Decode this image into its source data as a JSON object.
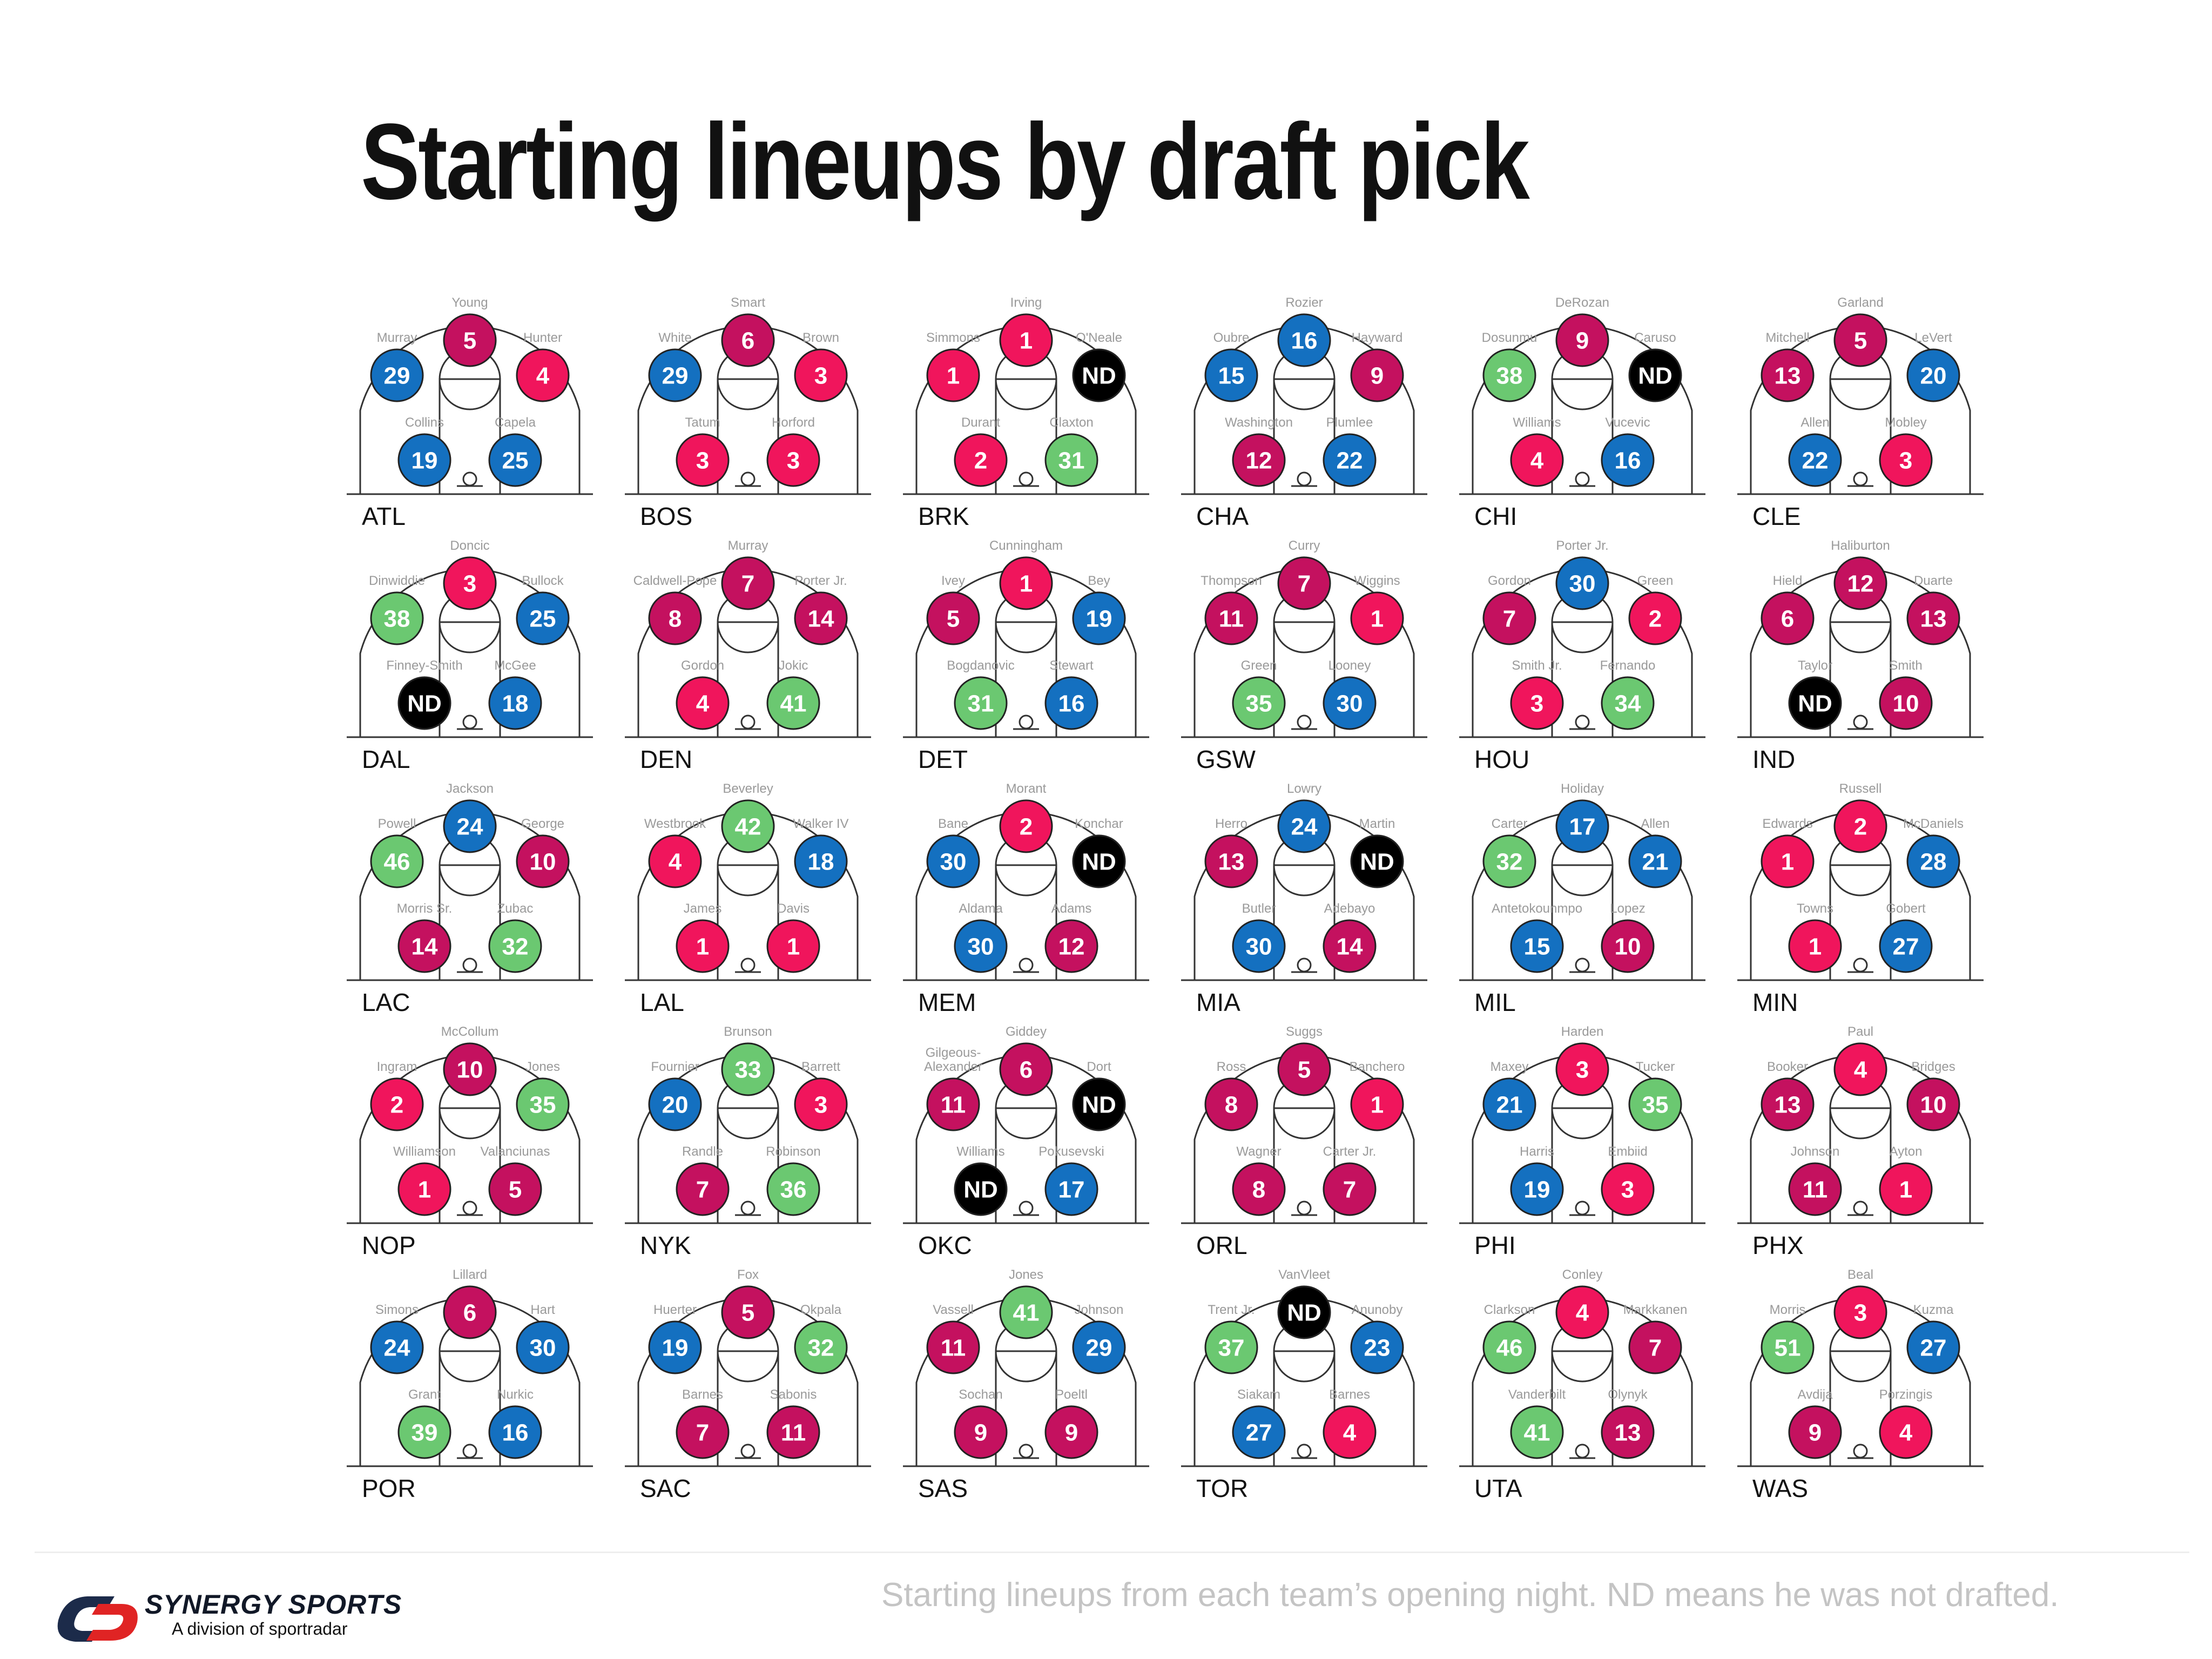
{
  "title": "Starting lineups by draft pick",
  "footnote": "Starting lineups from each team’s opening night. ND means he was not drafted.",
  "brand": {
    "name": "SYNERGY SPORTS",
    "division": "A division of sportradar"
  },
  "colors": {
    "top_pick": "#f0155c",
    "lottery": "#c4115f",
    "first_round": "#1470c0",
    "second_round": "#6bc871",
    "not_drafted": "#000000",
    "court_line": "#333333"
  },
  "chart_data": {
    "type": "table",
    "positions": [
      "left-wing",
      "top",
      "right-wing",
      "left-block",
      "right-block"
    ],
    "teams": [
      {
        "team": "ATL",
        "players": [
          {
            "name": "Murray",
            "pick": "29"
          },
          {
            "name": "Young",
            "pick": "5"
          },
          {
            "name": "Hunter",
            "pick": "4"
          },
          {
            "name": "Collins",
            "pick": "19"
          },
          {
            "name": "Capela",
            "pick": "25"
          }
        ]
      },
      {
        "team": "BOS",
        "players": [
          {
            "name": "White",
            "pick": "29"
          },
          {
            "name": "Smart",
            "pick": "6"
          },
          {
            "name": "Brown",
            "pick": "3"
          },
          {
            "name": "Tatum",
            "pick": "3"
          },
          {
            "name": "Horford",
            "pick": "3"
          }
        ]
      },
      {
        "team": "BRK",
        "players": [
          {
            "name": "Simmons",
            "pick": "1"
          },
          {
            "name": "Irving",
            "pick": "1"
          },
          {
            "name": "O'Neale",
            "pick": "ND"
          },
          {
            "name": "Durant",
            "pick": "2"
          },
          {
            "name": "Claxton",
            "pick": "31"
          }
        ]
      },
      {
        "team": "CHA",
        "players": [
          {
            "name": "Oubre",
            "pick": "15"
          },
          {
            "name": "Rozier",
            "pick": "16"
          },
          {
            "name": "Hayward",
            "pick": "9"
          },
          {
            "name": "Washington",
            "pick": "12"
          },
          {
            "name": "Plumlee",
            "pick": "22"
          }
        ]
      },
      {
        "team": "CHI",
        "players": [
          {
            "name": "Dosunmu",
            "pick": "38"
          },
          {
            "name": "DeRozan",
            "pick": "9"
          },
          {
            "name": "Caruso",
            "pick": "ND"
          },
          {
            "name": "Williams",
            "pick": "4"
          },
          {
            "name": "Vucevic",
            "pick": "16"
          }
        ]
      },
      {
        "team": "CLE",
        "players": [
          {
            "name": "Mitchell",
            "pick": "13"
          },
          {
            "name": "Garland",
            "pick": "5"
          },
          {
            "name": "LeVert",
            "pick": "20"
          },
          {
            "name": "Allen",
            "pick": "22"
          },
          {
            "name": "Mobley",
            "pick": "3"
          }
        ]
      },
      {
        "team": "DAL",
        "players": [
          {
            "name": "Dinwiddie",
            "pick": "38"
          },
          {
            "name": "Doncic",
            "pick": "3"
          },
          {
            "name": "Bullock",
            "pick": "25"
          },
          {
            "name": "Finney-Smith",
            "pick": "ND"
          },
          {
            "name": "McGee",
            "pick": "18"
          }
        ]
      },
      {
        "team": "DEN",
        "players": [
          {
            "name": "Caldwell-Pope",
            "pick": "8"
          },
          {
            "name": "Murray",
            "pick": "7"
          },
          {
            "name": "Porter Jr.",
            "pick": "14"
          },
          {
            "name": "Gordon",
            "pick": "4"
          },
          {
            "name": "Jokic",
            "pick": "41"
          }
        ]
      },
      {
        "team": "DET",
        "players": [
          {
            "name": "Ivey",
            "pick": "5"
          },
          {
            "name": "Cunningham",
            "pick": "1"
          },
          {
            "name": "Bey",
            "pick": "19"
          },
          {
            "name": "Bogdanovic",
            "pick": "31"
          },
          {
            "name": "Stewart",
            "pick": "16"
          }
        ]
      },
      {
        "team": "GSW",
        "players": [
          {
            "name": "Thompson",
            "pick": "11"
          },
          {
            "name": "Curry",
            "pick": "7"
          },
          {
            "name": "Wiggins",
            "pick": "1"
          },
          {
            "name": "Green",
            "pick": "35"
          },
          {
            "name": "Looney",
            "pick": "30"
          }
        ]
      },
      {
        "team": "HOU",
        "players": [
          {
            "name": "Gordon",
            "pick": "7"
          },
          {
            "name": "Porter Jr.",
            "pick": "30"
          },
          {
            "name": "Green",
            "pick": "2"
          },
          {
            "name": "Smith Jr.",
            "pick": "3"
          },
          {
            "name": "Fernando",
            "pick": "34"
          }
        ]
      },
      {
        "team": "IND",
        "players": [
          {
            "name": "Hield",
            "pick": "6"
          },
          {
            "name": "Haliburton",
            "pick": "12"
          },
          {
            "name": "Duarte",
            "pick": "13"
          },
          {
            "name": "Taylor",
            "pick": "ND"
          },
          {
            "name": "Smith",
            "pick": "10"
          }
        ]
      },
      {
        "team": "LAC",
        "players": [
          {
            "name": "Powell",
            "pick": "46"
          },
          {
            "name": "Jackson",
            "pick": "24"
          },
          {
            "name": "George",
            "pick": "10"
          },
          {
            "name": "Morris Sr.",
            "pick": "14"
          },
          {
            "name": "Zubac",
            "pick": "32"
          }
        ]
      },
      {
        "team": "LAL",
        "players": [
          {
            "name": "Westbrook",
            "pick": "4"
          },
          {
            "name": "Beverley",
            "pick": "42"
          },
          {
            "name": "Walker IV",
            "pick": "18"
          },
          {
            "name": "James",
            "pick": "1"
          },
          {
            "name": "Davis",
            "pick": "1"
          }
        ]
      },
      {
        "team": "MEM",
        "players": [
          {
            "name": "Bane",
            "pick": "30"
          },
          {
            "name": "Morant",
            "pick": "2"
          },
          {
            "name": "Konchar",
            "pick": "ND"
          },
          {
            "name": "Aldama",
            "pick": "30"
          },
          {
            "name": "Adams",
            "pick": "12"
          }
        ]
      },
      {
        "team": "MIA",
        "players": [
          {
            "name": "Herro",
            "pick": "13"
          },
          {
            "name": "Lowry",
            "pick": "24"
          },
          {
            "name": "Martin",
            "pick": "ND"
          },
          {
            "name": "Butler",
            "pick": "30"
          },
          {
            "name": "Adebayo",
            "pick": "14"
          }
        ]
      },
      {
        "team": "MIL",
        "players": [
          {
            "name": "Carter",
            "pick": "32"
          },
          {
            "name": "Holiday",
            "pick": "17"
          },
          {
            "name": "Allen",
            "pick": "21"
          },
          {
            "name": "Antetokounmpo",
            "pick": "15"
          },
          {
            "name": "Lopez",
            "pick": "10"
          }
        ]
      },
      {
        "team": "MIN",
        "players": [
          {
            "name": "Edwards",
            "pick": "1"
          },
          {
            "name": "Russell",
            "pick": "2"
          },
          {
            "name": "McDaniels",
            "pick": "28"
          },
          {
            "name": "Towns",
            "pick": "1"
          },
          {
            "name": "Gobert",
            "pick": "27"
          }
        ]
      },
      {
        "team": "NOP",
        "players": [
          {
            "name": "Ingram",
            "pick": "2"
          },
          {
            "name": "McCollum",
            "pick": "10"
          },
          {
            "name": "Jones",
            "pick": "35"
          },
          {
            "name": "Williamson",
            "pick": "1"
          },
          {
            "name": "Valanciunas",
            "pick": "5"
          }
        ]
      },
      {
        "team": "NYK",
        "players": [
          {
            "name": "Fournier",
            "pick": "20"
          },
          {
            "name": "Brunson",
            "pick": "33"
          },
          {
            "name": "Barrett",
            "pick": "3"
          },
          {
            "name": "Randle",
            "pick": "7"
          },
          {
            "name": "Robinson",
            "pick": "36"
          }
        ]
      },
      {
        "team": "OKC",
        "players": [
          {
            "name": "Gilgeous-\nAlexander",
            "pick": "11"
          },
          {
            "name": "Giddey",
            "pick": "6"
          },
          {
            "name": "Dort",
            "pick": "ND"
          },
          {
            "name": "Williams",
            "pick": "ND"
          },
          {
            "name": "Pokusevski",
            "pick": "17"
          }
        ]
      },
      {
        "team": "ORL",
        "players": [
          {
            "name": "Ross",
            "pick": "8"
          },
          {
            "name": "Suggs",
            "pick": "5"
          },
          {
            "name": "Banchero",
            "pick": "1"
          },
          {
            "name": "Wagner",
            "pick": "8"
          },
          {
            "name": "Carter Jr.",
            "pick": "7"
          }
        ]
      },
      {
        "team": "PHI",
        "players": [
          {
            "name": "Maxey",
            "pick": "21"
          },
          {
            "name": "Harden",
            "pick": "3"
          },
          {
            "name": "Tucker",
            "pick": "35"
          },
          {
            "name": "Harris",
            "pick": "19"
          },
          {
            "name": "Embiid",
            "pick": "3"
          }
        ]
      },
      {
        "team": "PHX",
        "players": [
          {
            "name": "Booker",
            "pick": "13"
          },
          {
            "name": "Paul",
            "pick": "4"
          },
          {
            "name": "Bridges",
            "pick": "10"
          },
          {
            "name": "Johnson",
            "pick": "11"
          },
          {
            "name": "Ayton",
            "pick": "1"
          }
        ]
      },
      {
        "team": "POR",
        "players": [
          {
            "name": "Simons",
            "pick": "24"
          },
          {
            "name": "Lillard",
            "pick": "6"
          },
          {
            "name": "Hart",
            "pick": "30"
          },
          {
            "name": "Grant",
            "pick": "39"
          },
          {
            "name": "Nurkic",
            "pick": "16"
          }
        ]
      },
      {
        "team": "SAC",
        "players": [
          {
            "name": "Huerter",
            "pick": "19"
          },
          {
            "name": "Fox",
            "pick": "5"
          },
          {
            "name": "Okpala",
            "pick": "32"
          },
          {
            "name": "Barnes",
            "pick": "7"
          },
          {
            "name": "Sabonis",
            "pick": "11"
          }
        ]
      },
      {
        "team": "SAS",
        "players": [
          {
            "name": "Vassell",
            "pick": "11"
          },
          {
            "name": "Jones",
            "pick": "41"
          },
          {
            "name": "Johnson",
            "pick": "29"
          },
          {
            "name": "Sochan",
            "pick": "9"
          },
          {
            "name": "Poeltl",
            "pick": "9"
          }
        ]
      },
      {
        "team": "TOR",
        "players": [
          {
            "name": "Trent Jr.",
            "pick": "37"
          },
          {
            "name": "VanVleet",
            "pick": "ND"
          },
          {
            "name": "Anunoby",
            "pick": "23"
          },
          {
            "name": "Siakam",
            "pick": "27"
          },
          {
            "name": "Barnes",
            "pick": "4"
          }
        ]
      },
      {
        "team": "UTA",
        "players": [
          {
            "name": "Clarkson",
            "pick": "46"
          },
          {
            "name": "Conley",
            "pick": "4"
          },
          {
            "name": "Markkanen",
            "pick": "7"
          },
          {
            "name": "Vanderbilt",
            "pick": "41"
          },
          {
            "name": "Olynyk",
            "pick": "13"
          }
        ]
      },
      {
        "team": "WAS",
        "players": [
          {
            "name": "Morris",
            "pick": "51"
          },
          {
            "name": "Beal",
            "pick": "3"
          },
          {
            "name": "Kuzma",
            "pick": "27"
          },
          {
            "name": "Avdija",
            "pick": "9"
          },
          {
            "name": "Porzingis",
            "pick": "4"
          }
        ]
      }
    ]
  }
}
